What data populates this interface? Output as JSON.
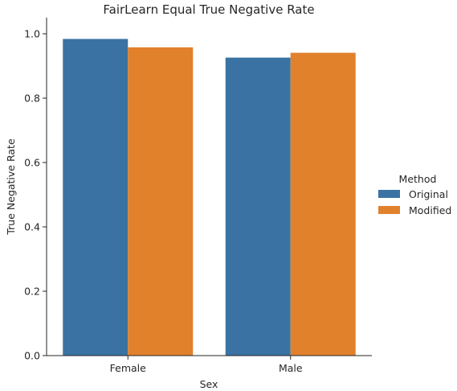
{
  "chart_data": {
    "type": "bar",
    "title": "FairLearn Equal True Negative Rate",
    "xlabel": "Sex",
    "ylabel": "True Negative Rate",
    "categories": [
      "Female",
      "Male"
    ],
    "ylim": [
      0,
      1.05
    ],
    "yticks": [
      "0.0",
      "0.2",
      "0.4",
      "0.6",
      "0.8",
      "1.0"
    ],
    "grid": false,
    "legend": {
      "title": "Method",
      "placement": "right"
    },
    "series": [
      {
        "name": "Original",
        "color": "#3a73a3",
        "values": [
          0.984,
          0.926
        ]
      },
      {
        "name": "Modified",
        "color": "#e1812c",
        "values": [
          0.958,
          0.941
        ]
      }
    ]
  }
}
